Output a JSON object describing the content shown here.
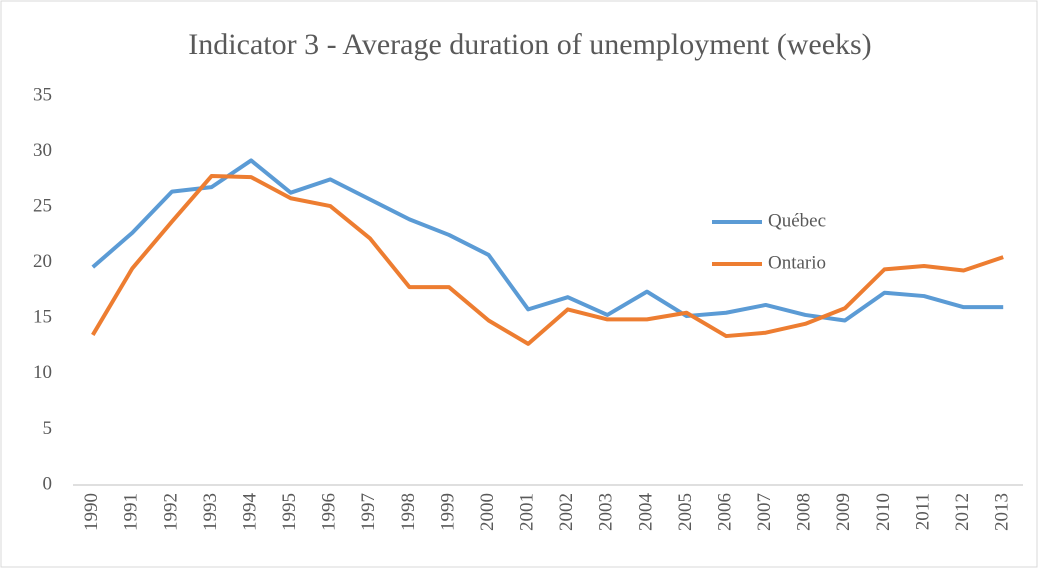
{
  "chart_data": {
    "type": "line",
    "title": "Indicator 3 - Average duration of unemployment (weeks)",
    "categories": [
      "1990",
      "1991",
      "1992",
      "1993",
      "1994",
      "1995",
      "1996",
      "1997",
      "1998",
      "1999",
      "2000",
      "2001",
      "2002",
      "2003",
      "2004",
      "2005",
      "2006",
      "2007",
      "2008",
      "2009",
      "2010",
      "2011",
      "2012",
      "2013"
    ],
    "series": [
      {
        "name": "Québec",
        "color": "#5b9bd5",
        "values": [
          19.6,
          22.7,
          26.4,
          26.8,
          29.2,
          26.3,
          27.5,
          25.7,
          23.9,
          22.5,
          20.7,
          15.8,
          16.9,
          15.3,
          17.4,
          15.2,
          15.5,
          16.2,
          15.3,
          14.8,
          17.3,
          17.0,
          16.0,
          16.0
        ]
      },
      {
        "name": "Ontario",
        "color": "#ed7d31",
        "values": [
          13.5,
          19.5,
          23.7,
          27.8,
          27.7,
          25.8,
          25.1,
          22.2,
          17.8,
          17.8,
          14.8,
          12.7,
          15.8,
          14.9,
          14.9,
          15.5,
          13.4,
          13.7,
          14.5,
          15.9,
          19.4,
          19.7,
          19.3,
          20.5
        ]
      }
    ],
    "ylim": [
      0,
      35
    ],
    "yticks": [
      0,
      5,
      10,
      15,
      20,
      25,
      30,
      35
    ],
    "grid": false,
    "legend": "right"
  }
}
